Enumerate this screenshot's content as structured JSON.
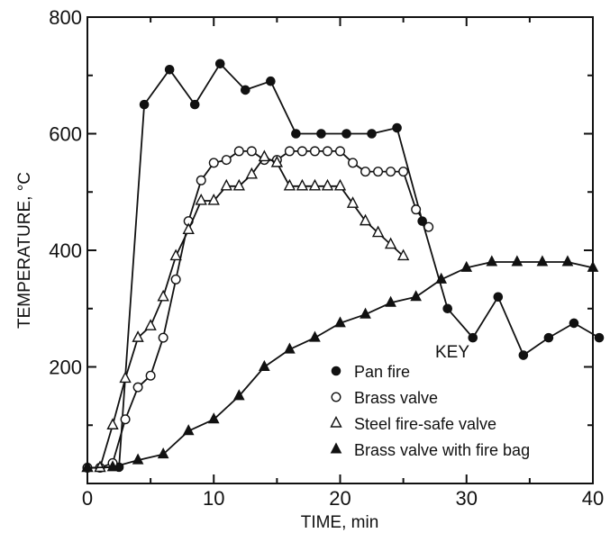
{
  "chart_data": {
    "type": "line",
    "xlabel": "TIME, min",
    "ylabel": "TEMPERATURE, °C",
    "xlim": [
      0,
      40
    ],
    "ylim": [
      0,
      800
    ],
    "xticks": [
      0,
      10,
      20,
      30,
      40
    ],
    "yticks": [
      200,
      400,
      600,
      800
    ],
    "legend_title": "KEY",
    "legend_position": "bottom-right",
    "grid": false,
    "series": [
      {
        "name": "Pan fire",
        "marker": "filled-circle",
        "x": [
          0,
          2.5,
          4.5,
          6.5,
          8.5,
          10.5,
          12.5,
          14.5,
          16.5,
          18.5,
          20.5,
          22.5,
          24.5,
          26.5,
          28.5,
          30.5,
          32.5,
          34.5,
          36.5,
          38.5,
          40.5
        ],
        "y": [
          27,
          28,
          650,
          710,
          650,
          720,
          675,
          690,
          600,
          600,
          600,
          600,
          610,
          450,
          300,
          250,
          320,
          220,
          250,
          275,
          250
        ]
      },
      {
        "name": "Brass valve",
        "marker": "open-circle",
        "x": [
          0,
          1,
          2,
          3,
          4,
          5,
          6,
          7,
          8,
          9,
          10,
          11,
          12,
          13,
          14,
          15,
          16,
          17,
          18,
          19,
          20,
          21,
          22,
          23,
          24,
          25,
          26,
          27
        ],
        "y": [
          27,
          27,
          35,
          110,
          165,
          185,
          250,
          350,
          450,
          520,
          550,
          555,
          570,
          570,
          555,
          555,
          570,
          570,
          570,
          570,
          570,
          550,
          535,
          535,
          535,
          535,
          470,
          440
        ]
      },
      {
        "name": "Steel fire-safe valve",
        "marker": "open-triangle",
        "x": [
          0,
          1,
          2,
          3,
          4,
          5,
          6,
          7,
          8,
          9,
          10,
          11,
          12,
          13,
          14,
          15,
          16,
          17,
          18,
          19,
          20,
          21,
          22,
          23,
          24,
          25
        ],
        "y": [
          27,
          27,
          100,
          180,
          250,
          270,
          320,
          390,
          435,
          485,
          485,
          510,
          510,
          530,
          560,
          550,
          510,
          510,
          510,
          510,
          510,
          480,
          450,
          430,
          410,
          390
        ]
      },
      {
        "name": "Brass valve with fire bag",
        "marker": "filled-triangle",
        "x": [
          0,
          2,
          4,
          6,
          8,
          10,
          12,
          14,
          16,
          18,
          20,
          22,
          24,
          26,
          28,
          30,
          32,
          34,
          36,
          38,
          40
        ],
        "y": [
          27,
          28,
          40,
          50,
          90,
          110,
          150,
          200,
          230,
          250,
          275,
          290,
          310,
          320,
          350,
          370,
          380,
          380,
          380,
          380,
          370
        ]
      }
    ]
  }
}
